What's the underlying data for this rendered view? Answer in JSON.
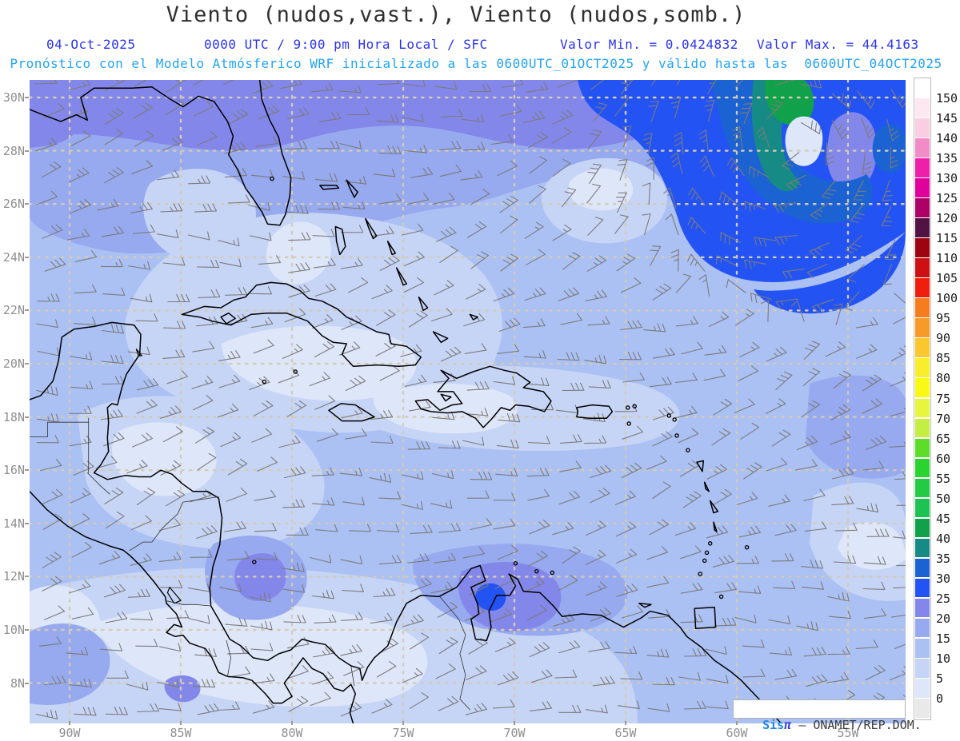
{
  "header": {
    "title": "Viento (nudos,vast.), Viento (nudos,somb.)",
    "info_line": {
      "date": "04-Oct-2025",
      "validity": "0000 UTC / 9:00 pm Hora Local / SFC",
      "valor_min": "Valor Min. = 0.0424832",
      "valor_max": "Valor Max. = 44.4163"
    },
    "model_line": "Pronóstico con el Modelo Atmósferico WRF inicializado a las 0600UTC_01OCT2025 y válido hasta las  0600UTC_04OCT2025"
  },
  "map": {
    "lat_tick_labels": [
      "30N",
      "28N",
      "26N",
      "24N",
      "22N",
      "20N",
      "18N",
      "16N",
      "14N",
      "12N",
      "10N",
      "8N"
    ],
    "lon_tick_labels": [
      "90W",
      "85W",
      "80W",
      "75W",
      "70W",
      "65W",
      "60W",
      "55W"
    ],
    "watermark": {
      "brand": "Sis",
      "pi": "π",
      "suffix": " – ONAMET/REP.DOM."
    }
  },
  "colorbar": {
    "tick_labels": [
      "0",
      "5",
      "10",
      "15",
      "20",
      "25",
      "30",
      "35",
      "40",
      "45",
      "50",
      "55",
      "60",
      "65",
      "70",
      "75",
      "80",
      "85",
      "90",
      "95",
      "100",
      "105",
      "110",
      "115",
      "120",
      "125",
      "130",
      "135",
      "140",
      "145",
      "150"
    ],
    "cell_colors_bottom_to_top": [
      "#e9e9e9",
      "#dee6f9",
      "#c6d4f6",
      "#abc0f3",
      "#97a9ef",
      "#8487ea",
      "#2453f4",
      "#1b62d2",
      "#168a84",
      "#12a14b",
      "#1cc352",
      "#22cb43",
      "#2ad32f",
      "#5ddd28",
      "#c4ef42",
      "#e6f63c",
      "#f9f914",
      "#f8ee2c",
      "#fac82e",
      "#f79a28",
      "#f67d1d",
      "#f01e0d",
      "#cd1112",
      "#9b0410",
      "#521244",
      "#ad0167",
      "#e0009b",
      "#ee1fa8",
      "#f18cc6",
      "#f9cde2",
      "#fde7f0",
      "#ffffff"
    ]
  },
  "chart_data": {
    "type": "heatmap",
    "title": "Viento (nudos,vast.), Viento (nudos,somb.)",
    "variable": "Viento",
    "units": "nudos",
    "date": "04-Oct-2025",
    "valid": "0000 UTC / 9:00 pm Hora Local / SFC",
    "value_min": 0.0424832,
    "value_max": 44.4163,
    "model": "WRF",
    "initialized": "0600UTC_01OCT2025",
    "valid_until": "0600UTC_04OCT2025",
    "x_axis": {
      "label": "longitude",
      "ticks": [
        "90W",
        "85W",
        "80W",
        "75W",
        "70W",
        "65W",
        "60W",
        "55W"
      ]
    },
    "y_axis": {
      "label": "latitude",
      "ticks": [
        "30N",
        "28N",
        "26N",
        "24N",
        "22N",
        "20N",
        "18N",
        "16N",
        "14N",
        "12N",
        "10N",
        "8N"
      ]
    },
    "colorbar_levels_knots": [
      0,
      5,
      10,
      15,
      20,
      25,
      30,
      35,
      40,
      45,
      50,
      55,
      60,
      65,
      70,
      75,
      80,
      85,
      90,
      95,
      100,
      105,
      110,
      115,
      120,
      125,
      130,
      135,
      140,
      145,
      150
    ],
    "legend_position": "right",
    "grid": true,
    "overlays": [
      "wind barbs",
      "coastlines"
    ],
    "source": "SisPI – ONAMET/REP.DOM."
  }
}
